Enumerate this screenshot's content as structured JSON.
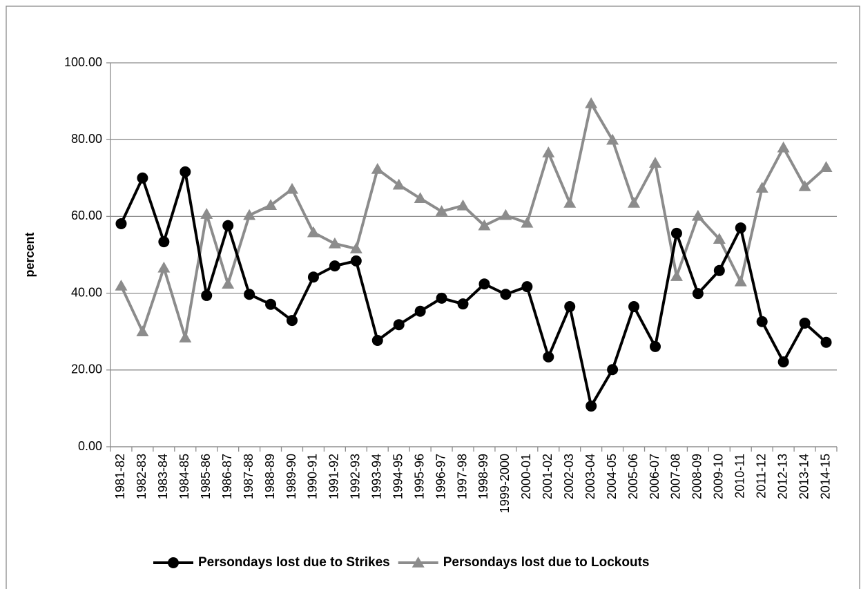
{
  "chart_data": {
    "type": "line",
    "y_label": "percent",
    "categories": [
      "1981-82",
      "1982-83",
      "1983-84",
      "1984-85",
      "1985-86",
      "1986-87",
      "1987-88",
      "1988-89",
      "1989-90",
      "1990-91",
      "1991-92",
      "1992-93",
      "1993-94",
      "1994-95",
      "1995-96",
      "1996-97",
      "1997-98",
      "1998-99",
      "1999-2000",
      "2000-01",
      "2001-02",
      "2002-03",
      "2003-04",
      "2004-05",
      "2005-06",
      "2006-07",
      "2007-08",
      "2008-09",
      "2009-10",
      "2010-11",
      "2011-12",
      "2012-13",
      "2013-14",
      "2014-15"
    ],
    "series": [
      {
        "name": "Persondays lost due to Strikes",
        "color": "#000000",
        "marker": "circle",
        "values": [
          58.1,
          70.0,
          53.4,
          71.6,
          39.4,
          57.6,
          39.7,
          37.1,
          32.9,
          44.2,
          47.1,
          48.4,
          27.7,
          31.8,
          35.3,
          38.7,
          37.2,
          42.4,
          39.7,
          41.7,
          23.4,
          36.5,
          10.6,
          20.1,
          36.5,
          26.1,
          55.6,
          39.9,
          45.9,
          57.0,
          32.6,
          22.1,
          32.2,
          27.2
        ]
      },
      {
        "name": "Persondays lost due to Lockouts",
        "color": "#8c8c8c",
        "marker": "triangle",
        "values": [
          41.9,
          30.0,
          46.6,
          28.4,
          60.6,
          42.4,
          60.3,
          62.9,
          67.1,
          55.8,
          52.9,
          51.6,
          72.3,
          68.2,
          64.7,
          61.3,
          62.8,
          57.6,
          60.3,
          58.3,
          76.6,
          63.5,
          89.4,
          79.9,
          63.5,
          73.9,
          44.4,
          60.1,
          54.1,
          43.0,
          67.4,
          77.9,
          67.8,
          72.8
        ]
      }
    ],
    "ylim": [
      0,
      100
    ],
    "yticks": [
      {
        "value": 0,
        "label": "0.00"
      },
      {
        "value": 20,
        "label": "20.00"
      },
      {
        "value": 40,
        "label": "40.00"
      },
      {
        "value": 60,
        "label": "60.00"
      },
      {
        "value": 80,
        "label": "80.00"
      },
      {
        "value": 100,
        "label": "100.00"
      }
    ],
    "grid": true,
    "legend": "bottom"
  }
}
